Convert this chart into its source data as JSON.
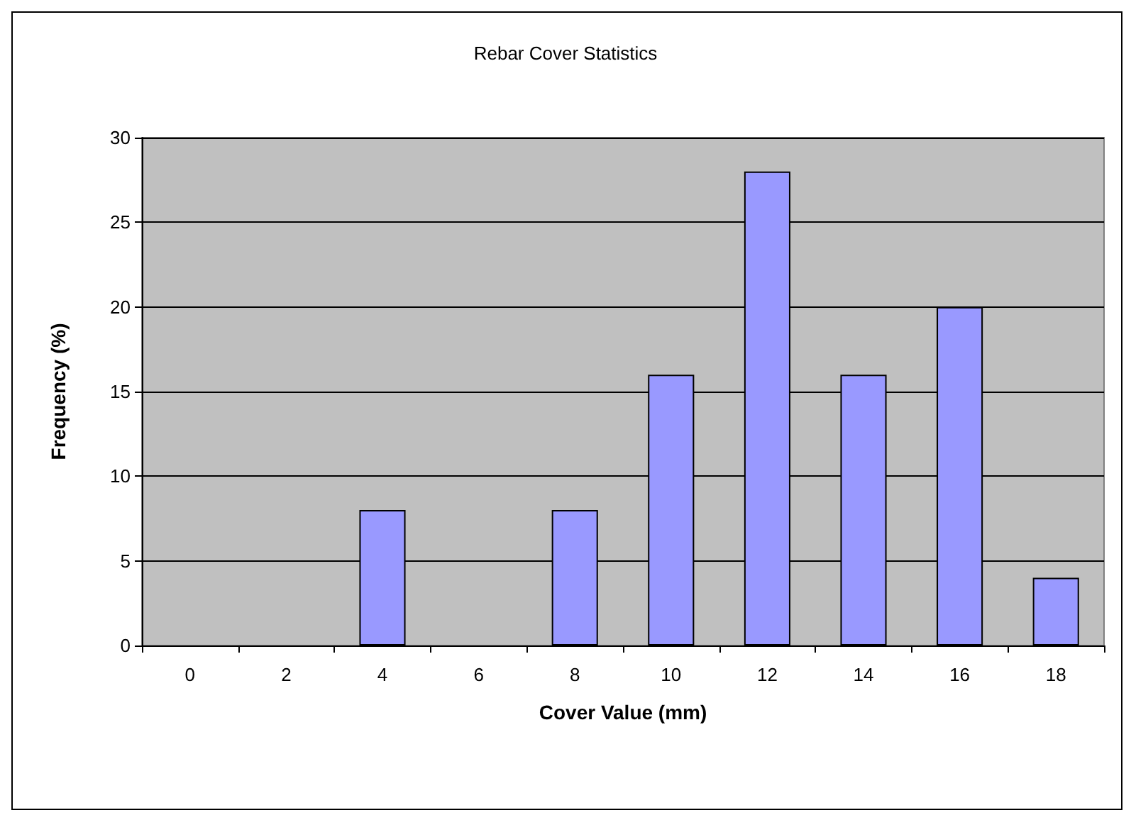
{
  "chart_data": {
    "type": "bar",
    "title": "Rebar Cover Statistics",
    "xlabel": "Cover Value (mm)",
    "ylabel": "Frequency (%)",
    "categories": [
      "0",
      "2",
      "4",
      "6",
      "8",
      "10",
      "12",
      "14",
      "16",
      "18"
    ],
    "values": [
      0,
      0,
      8,
      0,
      8,
      16,
      28,
      16,
      20,
      4
    ],
    "color": "#9999ff",
    "ylim": [
      0,
      30
    ],
    "yticks": [
      0,
      5,
      10,
      15,
      20,
      25,
      30
    ],
    "grid": "y"
  }
}
